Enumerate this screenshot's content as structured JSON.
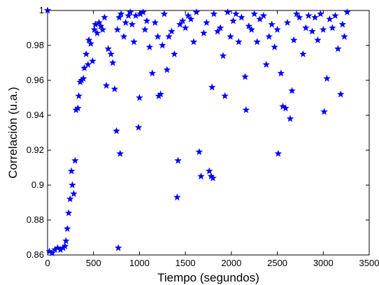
{
  "chart_data": {
    "type": "scatter",
    "xlabel": "Tiempo (segundos)",
    "ylabel": "Correlación (u.a.)",
    "color": "#0000ff",
    "marker": "star",
    "xlim": [
      0,
      3500
    ],
    "xticks": [
      0,
      500,
      1000,
      1500,
      2000,
      2500,
      3000,
      3500
    ],
    "ylim": [
      0.86,
      1
    ],
    "yticks": [
      0.86,
      0.88,
      0.9,
      0.92,
      0.94,
      0.96,
      0.98,
      1
    ],
    "x": [
      0,
      20,
      50,
      80,
      110,
      140,
      170,
      190,
      200,
      215,
      230,
      245,
      260,
      270,
      285,
      300,
      310,
      330,
      340,
      355,
      370,
      390,
      400,
      420,
      440,
      450,
      470,
      490,
      510,
      520,
      540,
      560,
      580,
      600,
      620,
      640,
      660,
      690,
      710,
      730,
      750,
      770,
      790,
      760,
      780,
      800,
      830,
      850,
      880,
      900,
      920,
      940,
      960,
      990,
      1000,
      1010,
      1040,
      1060,
      1080,
      1110,
      1140,
      1170,
      1200,
      1210,
      1230,
      1250,
      1270,
      1300,
      1320,
      1350,
      1380,
      1410,
      1420,
      1440,
      1470,
      1500,
      1530,
      1560,
      1590,
      1620,
      1650,
      1670,
      1700,
      1730,
      1760,
      1780,
      1800,
      1790,
      1810,
      1850,
      1880,
      1910,
      1930,
      1960,
      1990,
      2020,
      2050,
      2080,
      2110,
      2150,
      2160,
      2190,
      2220,
      2250,
      2280,
      2310,
      2350,
      2380,
      2410,
      2440,
      2470,
      2500,
      2510,
      2540,
      2560,
      2590,
      2610,
      2640,
      2660,
      2680,
      2710,
      2740,
      2780,
      2810,
      2840,
      2880,
      2910,
      2940,
      2970,
      3000,
      3010,
      3040,
      3070,
      3100,
      3130,
      3160,
      3190,
      3210,
      3230,
      3260
    ],
    "values": [
      1.0,
      0.862,
      0.861,
      0.863,
      0.864,
      0.863,
      0.864,
      0.865,
      0.868,
      0.875,
      0.884,
      0.892,
      0.908,
      0.9,
      0.895,
      0.914,
      0.943,
      0.944,
      0.951,
      0.959,
      0.96,
      0.961,
      0.967,
      0.975,
      0.969,
      0.983,
      0.981,
      0.971,
      0.989,
      0.992,
      0.987,
      0.993,
      0.991,
      0.989,
      0.996,
      0.957,
      0.978,
      0.975,
      0.97,
      0.955,
      0.931,
      0.864,
      0.918,
      0.989,
      0.996,
      0.998,
      0.985,
      0.993,
      0.997,
      0.999,
      0.992,
      0.982,
      0.997,
      0.933,
      0.95,
      0.998,
      0.999,
      0.989,
      0.994,
      0.979,
      0.964,
      0.993,
      0.985,
      0.951,
      0.952,
      0.98,
      0.998,
      0.966,
      0.985,
      0.988,
      0.975,
      0.893,
      0.914,
      0.992,
      0.994,
      0.99,
      0.997,
      0.995,
      0.982,
      0.999,
      0.919,
      0.905,
      0.987,
      0.993,
      0.908,
      0.905,
      0.904,
      0.956,
      0.998,
      0.988,
      0.99,
      0.974,
      0.951,
      0.999,
      0.985,
      0.994,
      0.998,
      0.982,
      0.996,
      0.962,
      0.943,
      0.991,
      0.989,
      0.998,
      0.982,
      0.995,
      0.997,
      0.969,
      0.985,
      0.992,
      0.979,
      0.989,
      0.918,
      0.964,
      0.945,
      0.944,
      0.993,
      0.938,
      0.954,
      0.983,
      0.998,
      0.996,
      0.975,
      0.99,
      0.997,
      0.988,
      0.996,
      0.983,
      0.998,
      0.989,
      0.942,
      0.961,
      0.995,
      0.99,
      0.997,
      0.978,
      0.952,
      0.992,
      0.985,
      0.999
    ]
  }
}
